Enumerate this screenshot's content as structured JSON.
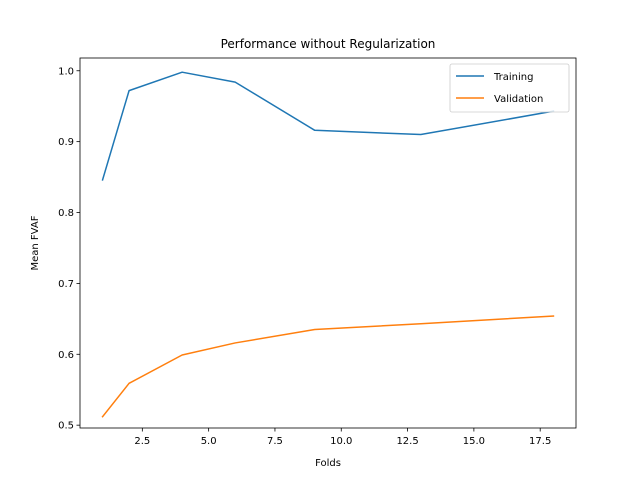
{
  "chart_data": {
    "type": "line",
    "title": "Performance without Regularization",
    "xlabel": "Folds",
    "ylabel": "Mean FVAF",
    "xlim": [
      0.15,
      18.85
    ],
    "ylim": [
      0.496,
      1.018
    ],
    "xticks": [
      2.5,
      5.0,
      7.5,
      10.0,
      12.5,
      15.0,
      17.5
    ],
    "xtick_labels": [
      "2.5",
      "5.0",
      "7.5",
      "10.0",
      "12.5",
      "15.0",
      "17.5"
    ],
    "yticks": [
      0.5,
      0.6,
      0.7,
      0.8,
      0.9,
      1.0
    ],
    "ytick_labels": [
      "0.5",
      "0.6",
      "0.7",
      "0.8",
      "0.9",
      "1.0"
    ],
    "grid": false,
    "legend_position": "top-right",
    "series": [
      {
        "name": "Training",
        "color": "#1f77b4",
        "x": [
          1,
          2,
          4,
          6,
          9,
          13,
          18
        ],
        "y": [
          0.846,
          0.972,
          0.998,
          0.984,
          0.916,
          0.91,
          0.943
        ]
      },
      {
        "name": "Validation",
        "color": "#ff7f0e",
        "x": [
          1,
          2,
          4,
          6,
          9,
          13,
          18
        ],
        "y": [
          0.512,
          0.559,
          0.599,
          0.616,
          0.635,
          0.643,
          0.654
        ]
      }
    ]
  }
}
